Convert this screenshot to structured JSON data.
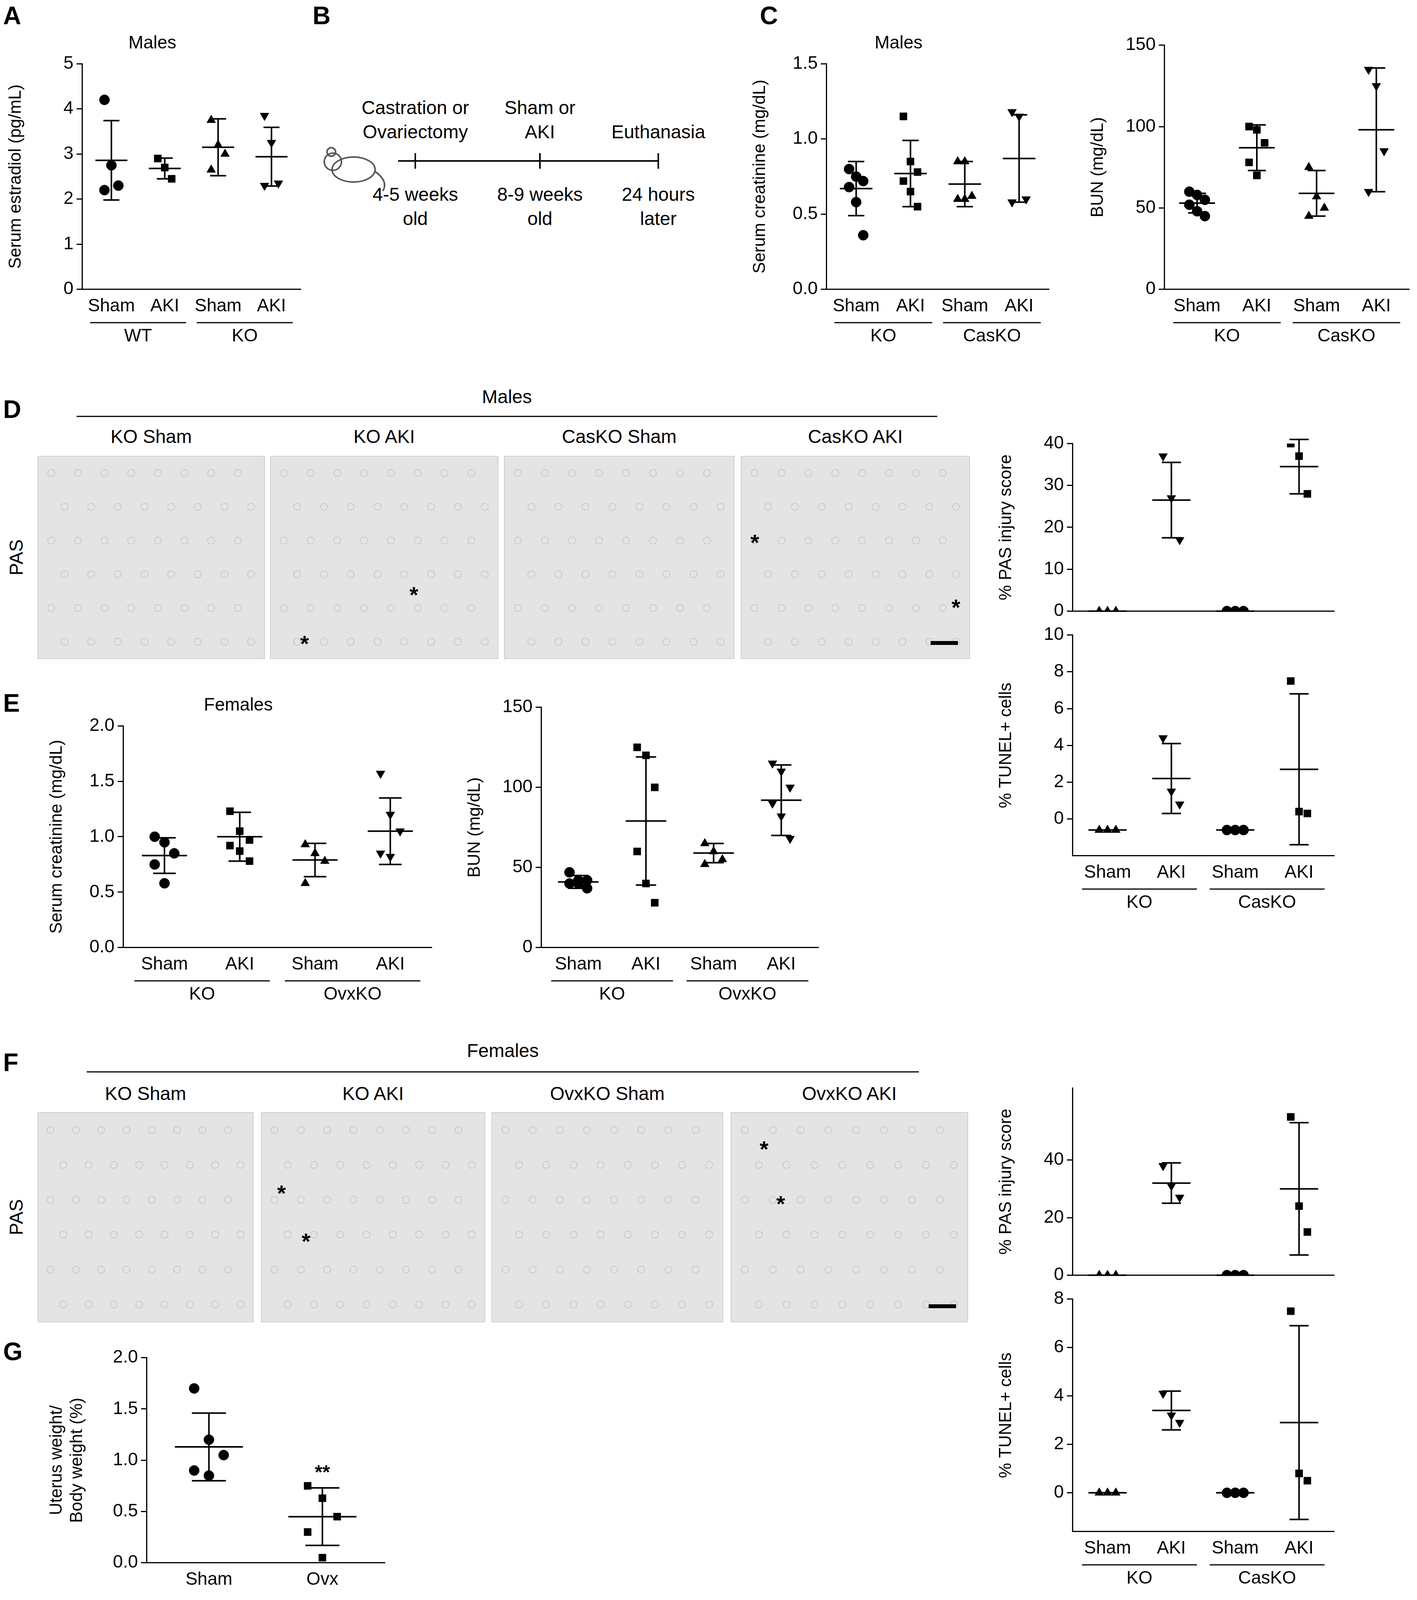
{
  "panel_labels": [
    "A",
    "B",
    "C",
    "D",
    "E",
    "F",
    "G"
  ],
  "diagram": {
    "timeline": [
      {
        "above": [
          "Castration or",
          "Ovariectomy"
        ],
        "below": [
          "4-5 weeks",
          "old"
        ]
      },
      {
        "above": [
          "Sham or",
          "AKI"
        ],
        "below": [
          "8-9 weeks",
          "old"
        ]
      },
      {
        "above": [
          "Euthanasia"
        ],
        "below": [
          "24 hours",
          "later"
        ]
      }
    ]
  },
  "image_panels": [
    {
      "title": "Males",
      "row_label": "PAS",
      "images": [
        {
          "label": "KO Sham",
          "annotations": []
        },
        {
          "label": "KO AKI",
          "annotations": [
            "*",
            "*"
          ]
        },
        {
          "label": "CasKO Sham",
          "annotations": []
        },
        {
          "label": "CasKO AKI",
          "annotations": [
            "*",
            "*"
          ]
        }
      ]
    },
    {
      "title": "Females",
      "row_label": "PAS",
      "images": [
        {
          "label": "KO Sham",
          "annotations": []
        },
        {
          "label": "KO AKI",
          "annotations": [
            "*",
            "*"
          ]
        },
        {
          "label": "OvxKO Sham",
          "annotations": []
        },
        {
          "label": "OvxKO AKI",
          "annotations": [
            "*",
            "*"
          ]
        }
      ]
    }
  ],
  "chart_data": [
    {
      "type": "scatter",
      "title": "Males",
      "y_label": "Serum estradiol (pg/mL)",
      "categories": [
        "Sham",
        "AKI",
        "Sham",
        "AKI"
      ],
      "group_labels": [
        "WT",
        "WT",
        "KO",
        "KO"
      ],
      "markers": [
        "circle",
        "square",
        "triangle",
        "triangle_down"
      ],
      "color": "#000000",
      "points": [
        [
          4.2,
          2.75,
          2.3,
          2.2
        ],
        [
          2.9,
          2.7,
          2.45
        ],
        [
          3.75,
          3.2,
          3.0,
          2.65
        ],
        [
          3.85,
          3.25,
          2.35,
          2.3
        ]
      ],
      "mean": [
        2.86,
        2.68,
        3.15,
        2.94
      ],
      "sd": [
        0.88,
        0.23,
        0.63,
        0.65
      ],
      "ylim": [
        0,
        5
      ],
      "yticks": [
        0,
        1,
        2,
        3,
        4,
        5
      ]
    },
    {
      "type": "scatter",
      "title": "Males",
      "y_label": "Serum creatinine (mg/dL)",
      "categories": [
        "Sham",
        "AKI",
        "Sham",
        "AKI"
      ],
      "group_labels": [
        "KO",
        "KO",
        "CasKO",
        "CasKO"
      ],
      "markers": [
        "circle",
        "square",
        "triangle",
        "triangle_down"
      ],
      "color": "#000000",
      "points": [
        [
          0.8,
          0.75,
          0.72,
          0.68,
          0.58,
          0.36
        ],
        [
          1.15,
          0.85,
          0.78,
          0.72,
          0.65,
          0.55
        ],
        [
          0.85,
          0.85,
          0.62,
          0.6,
          0.6
        ],
        [
          1.18,
          1.15,
          0.6,
          0.58
        ]
      ],
      "mean": [
        0.67,
        0.77,
        0.7,
        0.87
      ],
      "sd": [
        0.18,
        0.22,
        0.15,
        0.29
      ],
      "ylim": [
        0,
        1.5
      ],
      "yticks": [
        {
          "value": 0,
          "label": "0.0"
        },
        {
          "value": 0.5,
          "label": "0.5"
        },
        {
          "value": 1,
          "label": "1.0"
        },
        {
          "value": 1.5,
          "label": "1.5"
        }
      ]
    },
    {
      "type": "scatter",
      "y_label": "BUN (mg/dL)",
      "categories": [
        "Sham",
        "AKI",
        "Sham",
        "AKI"
      ],
      "group_labels": [
        "KO",
        "KO",
        "CasKO",
        "CasKO"
      ],
      "markers": [
        "circle",
        "square",
        "triangle",
        "triangle_down"
      ],
      "color": "#000000",
      "points": [
        [
          60,
          58,
          55,
          52,
          48,
          45
        ],
        [
          100,
          98,
          90,
          78,
          70
        ],
        [
          75,
          57,
          50,
          45
        ],
        [
          135,
          125,
          85,
          60
        ]
      ],
      "mean": [
        53,
        87,
        59,
        98
      ],
      "sd": [
        6,
        14,
        14,
        38
      ],
      "ylim": [
        0,
        150
      ],
      "yticks": [
        0,
        50,
        100,
        150
      ]
    },
    {
      "type": "scatter",
      "y_label": "% PAS injury score",
      "tick_labels": "y",
      "categories": [
        "Sham",
        "AKI",
        "Sham",
        "AKI"
      ],
      "markers": [
        "triangle",
        "triangle_down",
        "circle",
        "square"
      ],
      "color": "#000000",
      "points": [
        [
          0,
          0,
          0
        ],
        [
          37,
          27,
          17
        ],
        [
          0,
          0,
          0
        ],
        [
          40,
          37,
          28
        ]
      ],
      "mean": [
        0,
        26.5,
        0,
        34.5
      ],
      "sd": [
        0,
        9,
        0,
        6.5
      ],
      "ylim": [
        0,
        40
      ],
      "yticks": [
        0,
        10,
        20,
        30,
        40
      ]
    },
    {
      "type": "scatter",
      "y_label": "% TUNEL+ cells",
      "categories": [
        "Sham",
        "AKI",
        "Sham",
        "AKI"
      ],
      "group_labels": [
        "KO",
        "KO",
        "CasKO",
        "CasKO"
      ],
      "markers": [
        "triangle",
        "triangle_down",
        "circle",
        "square"
      ],
      "color": "#000000",
      "points": [
        [
          -0.6,
          -0.6,
          -0.6
        ],
        [
          4.4,
          1.5,
          0.8
        ],
        [
          -0.6,
          -0.6,
          -0.6
        ],
        [
          7.5,
          0.4,
          0.3
        ]
      ],
      "mean": [
        -0.6,
        2.2,
        -0.6,
        2.7
      ],
      "sd": [
        0,
        1.9,
        0,
        4.1
      ],
      "ylim": [
        -2,
        10
      ],
      "yticks": [
        0,
        2,
        4,
        6,
        8,
        10
      ]
    },
    {
      "type": "scatter",
      "title": "Females",
      "y_label": "Serum creatinine (mg/dL)",
      "categories": [
        "Sham",
        "AKI",
        "Sham",
        "AKI"
      ],
      "group_labels": [
        "KO",
        "KO",
        "OvxKO",
        "OvxKO"
      ],
      "markers": [
        "circle",
        "square",
        "triangle",
        "triangle_down"
      ],
      "color": "#000000",
      "points": [
        [
          1.0,
          0.95,
          0.85,
          0.75,
          0.58
        ],
        [
          1.23,
          1.05,
          0.97,
          0.92,
          0.87,
          0.78
        ],
        [
          0.93,
          0.85,
          0.78,
          0.58
        ],
        [
          1.57,
          1.2,
          1.05,
          0.85,
          0.82
        ]
      ],
      "mean": [
        0.83,
        1.0,
        0.79,
        1.05
      ],
      "sd": [
        0.16,
        0.22,
        0.15,
        0.3
      ],
      "ylim": [
        0,
        2
      ],
      "yticks": [
        {
          "value": 0,
          "label": "0.0"
        },
        {
          "value": 0.5,
          "label": "0.5"
        },
        {
          "value": 1,
          "label": "1.0"
        },
        {
          "value": 1.5,
          "label": "1.5"
        },
        {
          "value": 2,
          "label": "2.0"
        }
      ]
    },
    {
      "type": "scatter",
      "y_label": "BUN (mg/dL)",
      "categories": [
        "Sham",
        "AKI",
        "Sham",
        "AKI"
      ],
      "group_labels": [
        "KO",
        "KO",
        "OvxKO",
        "OvxKO"
      ],
      "markers": [
        "circle",
        "square",
        "triangle",
        "triangle_down"
      ],
      "color": "#000000",
      "points": [
        [
          47,
          42,
          42,
          40,
          40,
          37
        ],
        [
          125,
          120,
          100,
          60,
          40,
          28
        ],
        [
          65,
          60,
          55,
          52
        ],
        [
          115,
          110,
          100,
          90,
          82,
          68
        ]
      ],
      "mean": [
        41,
        79,
        59,
        92
      ],
      "sd": [
        4,
        40,
        6,
        22
      ],
      "ylim": [
        0,
        150
      ],
      "yticks": [
        0,
        50,
        100,
        150
      ]
    },
    {
      "type": "scatter",
      "y_label": "% PAS injury score",
      "tick_labels": "y",
      "categories": [
        "Sham",
        "AKI",
        "Sham",
        "AKI"
      ],
      "markers": [
        "triangle",
        "triangle_down",
        "circle",
        "square"
      ],
      "color": "#000000",
      "points": [
        [
          0,
          0,
          0
        ],
        [
          38,
          31,
          27
        ],
        [
          0,
          0,
          0
        ],
        [
          55,
          24,
          15
        ]
      ],
      "mean": [
        0,
        32,
        0,
        30
      ],
      "sd": [
        0,
        7,
        0,
        23
      ],
      "ylim": [
        0,
        65
      ],
      "yticks": [
        0,
        20,
        40
      ]
    },
    {
      "type": "scatter",
      "y_label": "% TUNEL+ cells",
      "categories": [
        "Sham",
        "AKI",
        "Sham",
        "AKI"
      ],
      "group_labels": [
        "KO",
        "KO",
        "CasKO",
        "CasKO"
      ],
      "markers": [
        "triangle",
        "triangle_down",
        "circle",
        "square"
      ],
      "color": "#000000",
      "points": [
        [
          0,
          0,
          0
        ],
        [
          4.1,
          3.2,
          2.9
        ],
        [
          0,
          0,
          0
        ],
        [
          7.5,
          0.8,
          0.5
        ]
      ],
      "mean": [
        0,
        3.4,
        0,
        2.9
      ],
      "sd": [
        0,
        0.8,
        0,
        4.0
      ],
      "ylim": [
        -1.6,
        8
      ],
      "yticks": [
        0,
        2,
        4,
        6,
        8
      ]
    },
    {
      "type": "scatter",
      "y_label": [
        "Uterus weight/",
        "Body weight (%)"
      ],
      "categories": [
        "Sham",
        "Ovx"
      ],
      "markers": [
        "circle",
        "square"
      ],
      "color": "#000000",
      "points": [
        [
          1.7,
          1.2,
          1.05,
          0.9,
          0.85
        ],
        [
          0.75,
          0.63,
          0.45,
          0.3,
          0.05
        ]
      ],
      "mean": [
        1.13,
        0.45
      ],
      "sd": [
        0.33,
        0.28
      ],
      "annotations": [
        {
          "category": "Ovx",
          "text": "**"
        }
      ],
      "ylim": [
        0,
        2
      ],
      "yticks": [
        {
          "value": 0,
          "label": "0.0"
        },
        {
          "value": 0.5,
          "label": "0.5"
        },
        {
          "value": 1,
          "label": "1.0"
        },
        {
          "value": 1.5,
          "label": "1.5"
        },
        {
          "value": 2,
          "label": "2.0"
        }
      ]
    }
  ]
}
